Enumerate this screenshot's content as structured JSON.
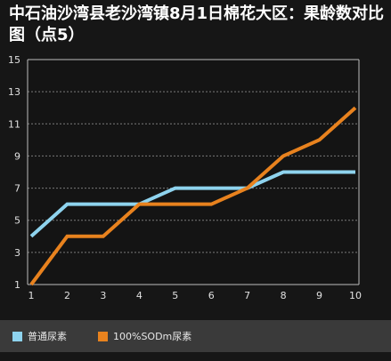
{
  "title": "中石油沙湾县老沙湾镇8月1日棉花大区：果龄数对比图（点5）",
  "chart_data": {
    "type": "line",
    "title": "中石油沙湾县老沙湾镇8月1日棉花大区：果龄数对比图（点5）",
    "xlabel": "",
    "ylabel": "",
    "x": [
      1,
      2,
      3,
      4,
      5,
      6,
      7,
      8,
      9,
      10
    ],
    "x_tick_labels": [
      "1",
      "2",
      "3",
      "4",
      "5",
      "6",
      "7",
      "8",
      "9",
      "10"
    ],
    "y_tick_labels": [
      "1",
      "3",
      "5",
      "7",
      "9",
      "11",
      "13",
      "15"
    ],
    "ylim": [
      1,
      15
    ],
    "y_ticks": [
      1,
      3,
      5,
      7,
      9,
      11,
      13,
      15
    ],
    "grid": "horizontal-dashed",
    "legend_position": "bottom",
    "series": [
      {
        "name": "普通尿素",
        "color": "#8ed3ee",
        "values": [
          4,
          6,
          6,
          6,
          7,
          7,
          7,
          8,
          8,
          8
        ]
      },
      {
        "name": "100%SODm尿素",
        "color": "#e8821e",
        "values": [
          1,
          4,
          4,
          6,
          6,
          6,
          7,
          9,
          10,
          12
        ]
      }
    ],
    "colors": {
      "background": "#161616",
      "plot_background": "#141414",
      "axis": "#bdbdbd",
      "grid": "#7a7a7a",
      "tick_text": "#e0e0e0",
      "legend_background": "#3a3a3a"
    }
  }
}
